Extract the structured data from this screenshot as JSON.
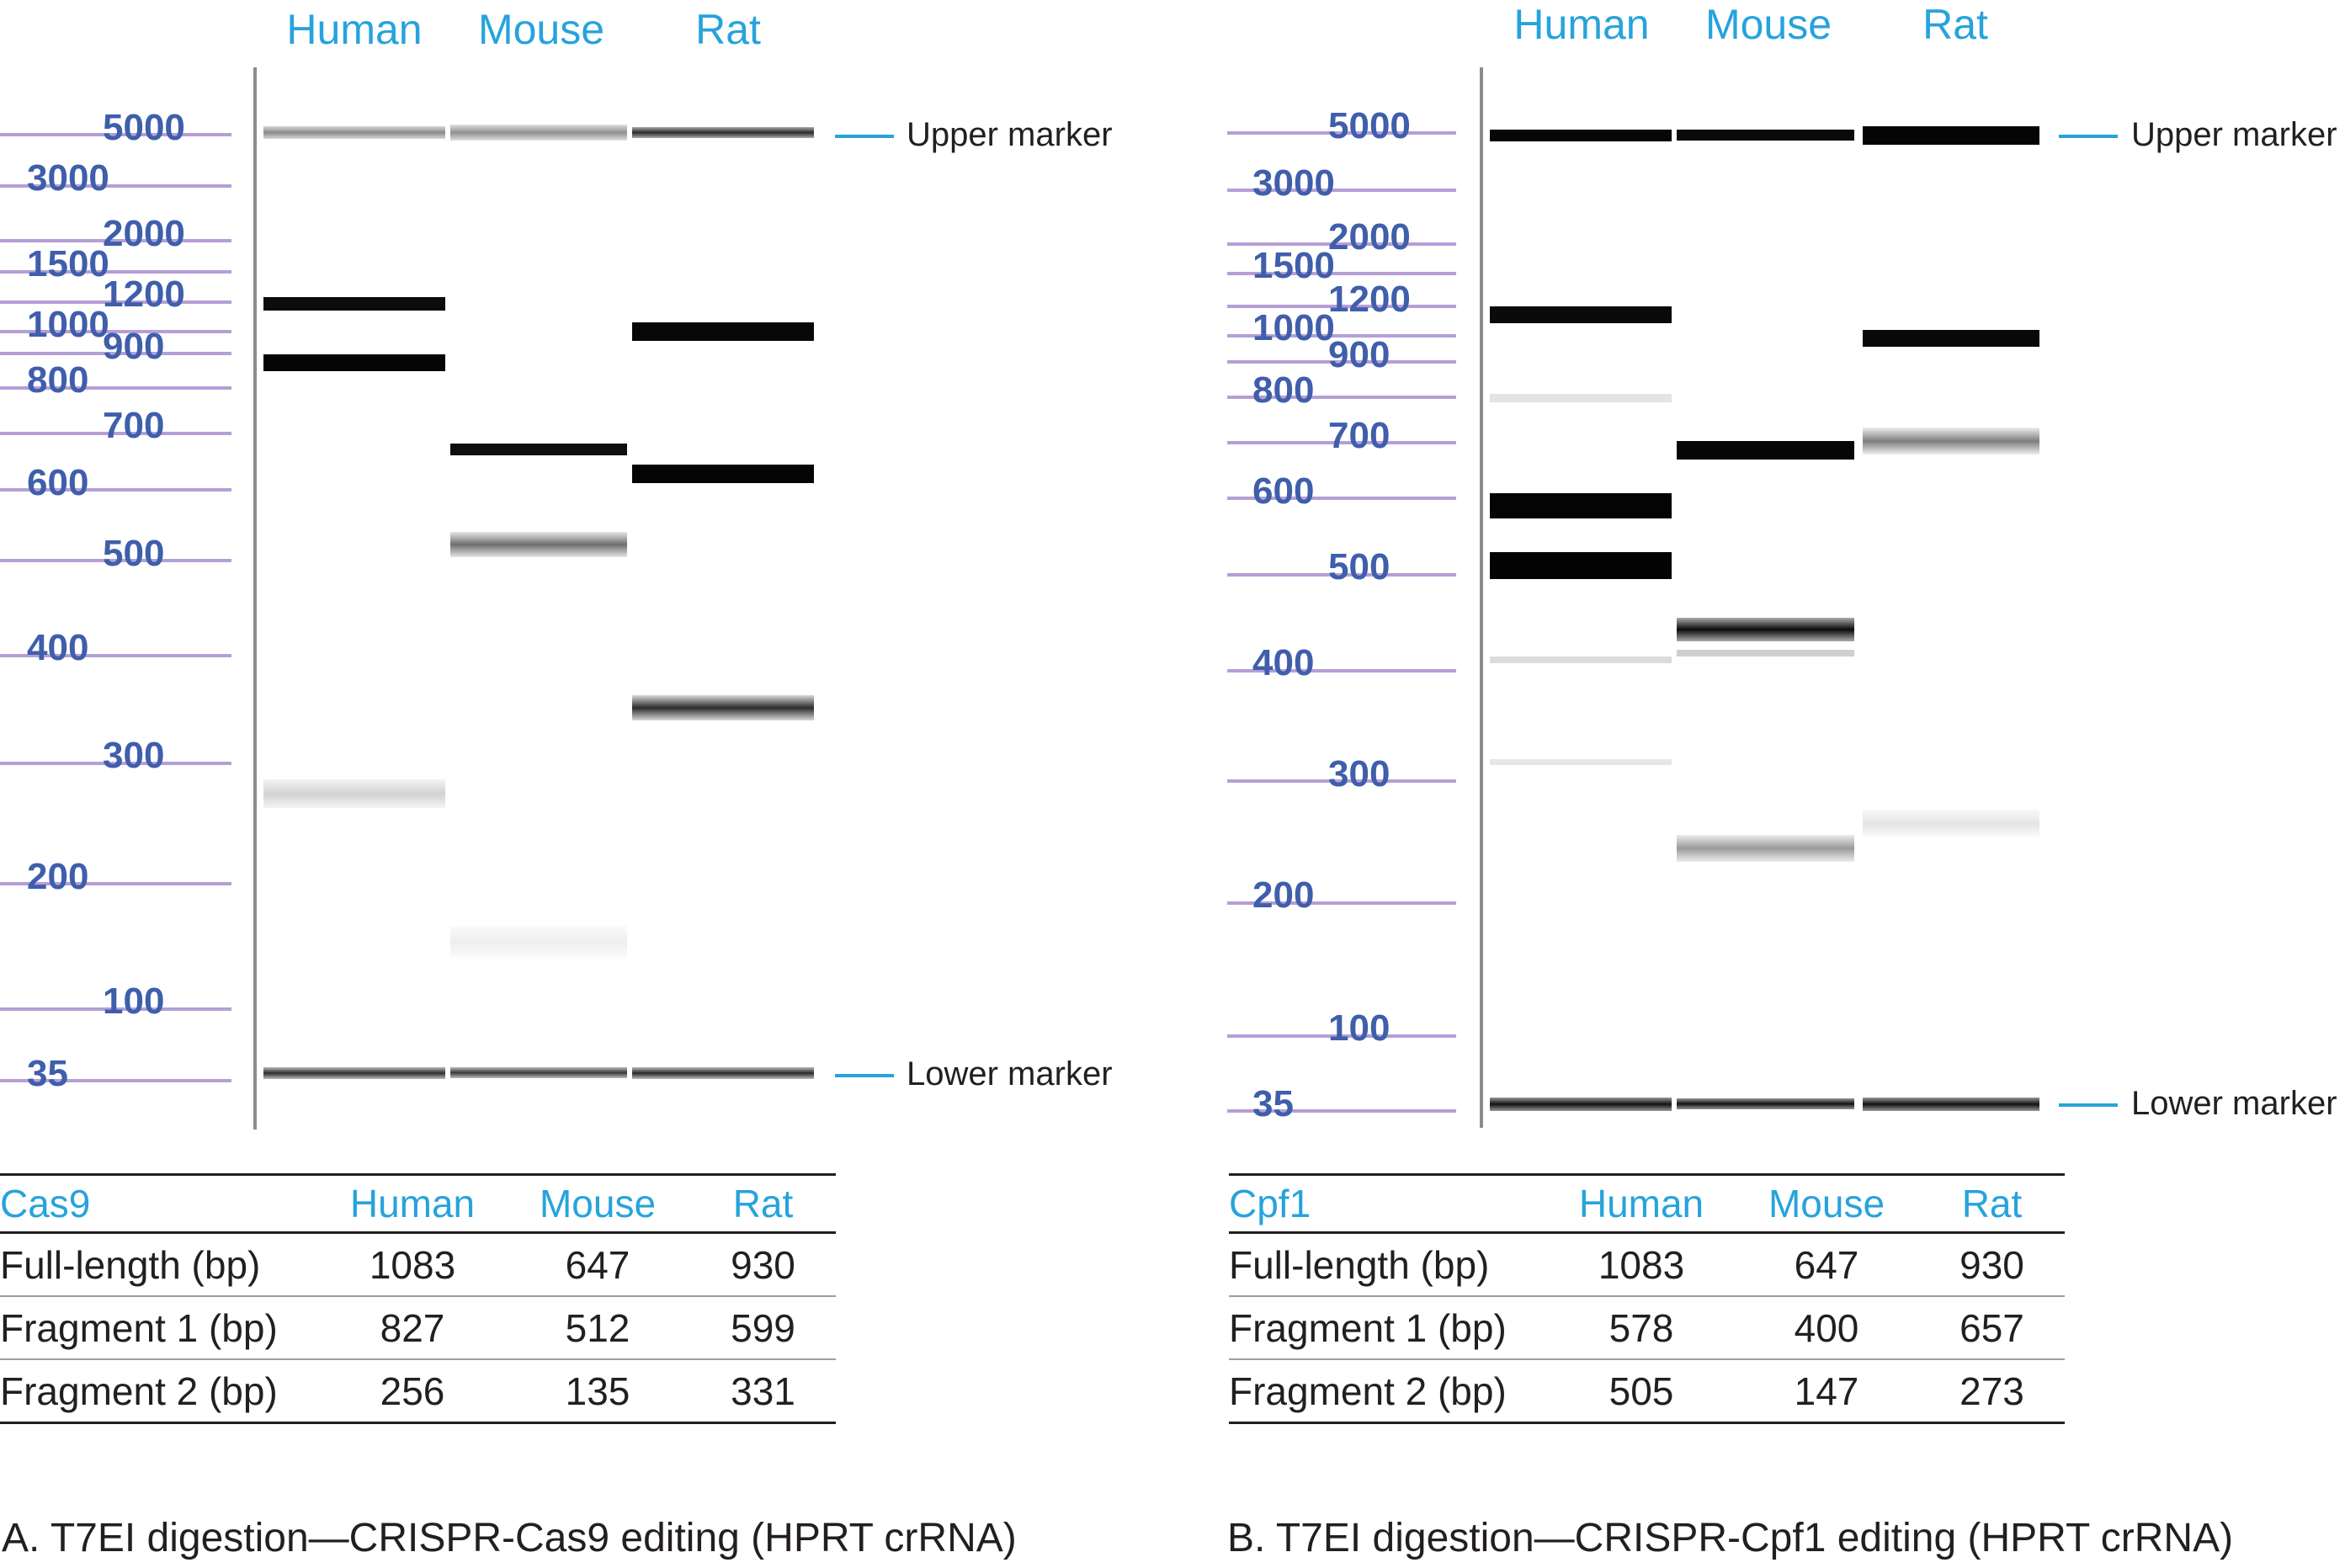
{
  "panels": [
    {
      "id": "a",
      "lanes": [
        "Human",
        "Mouse",
        "Rat"
      ],
      "markers": {
        "upper": "Upper marker",
        "lower": "Lower marker"
      },
      "ladder": [
        "5000",
        "3000",
        "2000",
        "1500",
        "1200",
        "1000",
        "900",
        "800",
        "700",
        "600",
        "500",
        "400",
        "300",
        "200",
        "100",
        "35"
      ],
      "table": {
        "header": [
          "Cas9",
          "Human",
          "Mouse",
          "Rat"
        ],
        "rows": [
          [
            "Full-length (bp)",
            "1083",
            "647",
            "930"
          ],
          [
            "Fragment 1 (bp)",
            "827",
            "512",
            "599"
          ],
          [
            "Fragment 2 (bp)",
            "256",
            "135",
            "331"
          ]
        ]
      },
      "caption": "A. T7EI digestion—CRISPR-Cas9 editing (HPRT crRNA)"
    },
    {
      "id": "b",
      "lanes": [
        "Human",
        "Mouse",
        "Rat"
      ],
      "markers": {
        "upper": "Upper marker",
        "lower": "Lower marker"
      },
      "ladder": [
        "5000",
        "3000",
        "2000",
        "1500",
        "1200",
        "1000",
        "900",
        "800",
        "700",
        "600",
        "500",
        "400",
        "300",
        "200",
        "100",
        "35"
      ],
      "table": {
        "header": [
          "Cpf1",
          "Human",
          "Mouse",
          "Rat"
        ],
        "rows": [
          [
            "Full-length (bp)",
            "1083",
            "647",
            "930"
          ],
          [
            "Fragment 1 (bp)",
            "578",
            "400",
            "657"
          ],
          [
            "Fragment 2 (bp)",
            "505",
            "147",
            "273"
          ]
        ]
      },
      "caption": "B. T7EI digestion—CRISPR-Cpf1 editing (HPRT crRNA)"
    }
  ]
}
